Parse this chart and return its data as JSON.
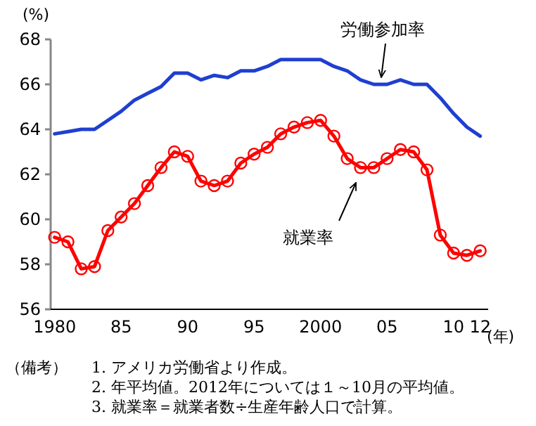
{
  "chart_data": {
    "type": "line",
    "ylabel": "(%)",
    "xlabel": "(年)",
    "x": [
      1980,
      1981,
      1982,
      1983,
      1984,
      1985,
      1986,
      1987,
      1988,
      1989,
      1990,
      1991,
      1992,
      1993,
      1994,
      1995,
      1996,
      1997,
      1998,
      1999,
      2000,
      2001,
      2002,
      2003,
      2004,
      2005,
      2006,
      2007,
      2008,
      2009,
      2010,
      2011,
      2012
    ],
    "series": [
      {
        "name": "労働参加率",
        "color": "#1f3fd0",
        "marker": "none",
        "values": [
          63.8,
          63.9,
          64.0,
          64.0,
          64.4,
          64.8,
          65.3,
          65.6,
          65.9,
          66.5,
          66.5,
          66.2,
          66.4,
          66.3,
          66.6,
          66.6,
          66.8,
          67.1,
          67.1,
          67.1,
          67.1,
          66.8,
          66.6,
          66.2,
          66.0,
          66.0,
          66.2,
          66.0,
          66.0,
          65.4,
          64.7,
          64.1,
          63.7
        ]
      },
      {
        "name": "就業率",
        "color": "#ff0000",
        "marker": "circle",
        "values": [
          59.2,
          59.0,
          57.8,
          57.9,
          59.5,
          60.1,
          60.7,
          61.5,
          62.3,
          63.0,
          62.8,
          61.7,
          61.5,
          61.7,
          62.5,
          62.9,
          63.2,
          63.8,
          64.1,
          64.3,
          64.4,
          63.7,
          62.7,
          62.3,
          62.3,
          62.7,
          63.1,
          63.0,
          62.2,
          59.3,
          58.5,
          58.4,
          58.6
        ]
      }
    ],
    "xlim": [
      1979.7,
      2012.6
    ],
    "ylim": [
      56,
      68
    ],
    "xticks": [
      {
        "value": 1980,
        "label": "1980"
      },
      {
        "value": 1985,
        "label": "85"
      },
      {
        "value": 1990,
        "label": "90"
      },
      {
        "value": 1995,
        "label": "95"
      },
      {
        "value": 2000,
        "label": "2000"
      },
      {
        "value": 2005,
        "label": "05"
      },
      {
        "value": 2010,
        "label": "10"
      },
      {
        "value": 2012,
        "label": "12"
      }
    ],
    "yticks": [
      56,
      58,
      60,
      62,
      64,
      66,
      68
    ],
    "grid": false,
    "line_style": "solid",
    "annotations": [
      "（備考）",
      "1. アメリカ労働省より作成。",
      "2. 年平均値。2012年については１～10月の平均値。",
      "3. 就業率＝就業者数÷生産年齢人口で計算。"
    ]
  }
}
